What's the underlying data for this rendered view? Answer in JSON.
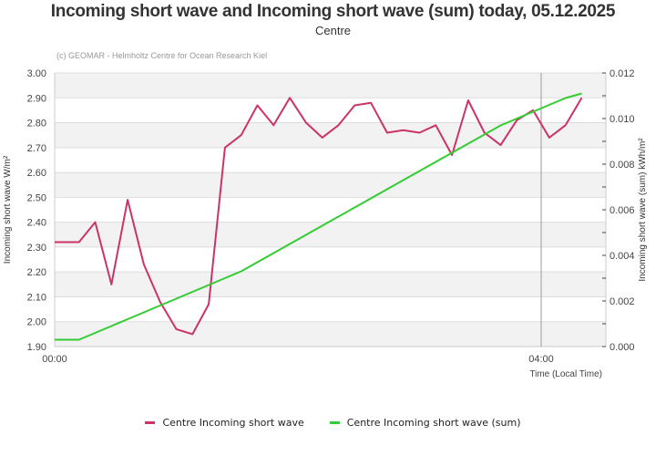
{
  "header": {
    "title": "Incoming short wave and Incoming short wave (sum) today, 05.12.2025",
    "subtitle": "Centre",
    "credit": "(c) GEOMAR - Helmholtz Centre for Ocean Research Kiel"
  },
  "legend": {
    "items": [
      {
        "label": "Centre Incoming short wave",
        "color": "#cc3366"
      },
      {
        "label": "Centre Incoming short wave (sum)",
        "color": "#33cc33"
      }
    ]
  },
  "chart_data": {
    "type": "line",
    "title": "Incoming short wave and Incoming short wave (sum) today, 05.12.2025",
    "subtitle": "Centre",
    "xlabel": "Time (Local Time)",
    "ylabel": "Incoming short wave W/m²",
    "y2label": "Incoming short wave (sum) kWh/m²",
    "x_ticks": [
      "00:00",
      "04:00"
    ],
    "x_tick_minutes": [
      0,
      240
    ],
    "ylim": [
      1.9,
      3.0
    ],
    "y_ticks": [
      "1.90",
      "2.00",
      "2.10",
      "2.20",
      "2.30",
      "2.40",
      "2.50",
      "2.60",
      "2.70",
      "2.80",
      "2.90",
      "3.00"
    ],
    "y2lim": [
      0.0,
      0.012
    ],
    "y2_ticks": [
      "0.000",
      "0.002",
      "0.004",
      "0.006",
      "0.008",
      "0.010",
      "0.012"
    ],
    "marker_line_minutes": 240,
    "grid": true,
    "legend_position": "bottom",
    "x_minutes": [
      0,
      12,
      20,
      28,
      36,
      44,
      52,
      60,
      68,
      76,
      84,
      92,
      100,
      108,
      116,
      124,
      132,
      140,
      148,
      156,
      164,
      172,
      180,
      188,
      196,
      204,
      212,
      220,
      228,
      236,
      244,
      252,
      260
    ],
    "series": [
      {
        "name": "Centre Incoming short wave",
        "axis": "left",
        "color": "#cc3366",
        "values": [
          2.32,
          2.32,
          2.4,
          2.15,
          2.49,
          2.23,
          2.08,
          1.97,
          1.95,
          2.07,
          2.7,
          2.75,
          2.87,
          2.79,
          2.9,
          2.8,
          2.74,
          2.79,
          2.87,
          2.88,
          2.76,
          2.77,
          2.76,
          2.79,
          2.67,
          2.89,
          2.76,
          2.71,
          2.81,
          2.85,
          2.74,
          2.79,
          2.9
        ]
      },
      {
        "name": "Centre Incoming short wave (sum)",
        "axis": "right",
        "color": "#33cc33",
        "values": [
          0.0003,
          0.0003,
          0.0006,
          0.0009,
          0.0012,
          0.0015,
          0.0018,
          0.0021,
          0.0024,
          0.0027,
          0.003,
          0.0033,
          0.0037,
          0.0041,
          0.0045,
          0.0049,
          0.0053,
          0.0057,
          0.0061,
          0.0065,
          0.0069,
          0.0073,
          0.0077,
          0.0081,
          0.0085,
          0.0089,
          0.0093,
          0.0097,
          0.01,
          0.0103,
          0.0106,
          0.0109,
          0.0111
        ]
      }
    ]
  }
}
